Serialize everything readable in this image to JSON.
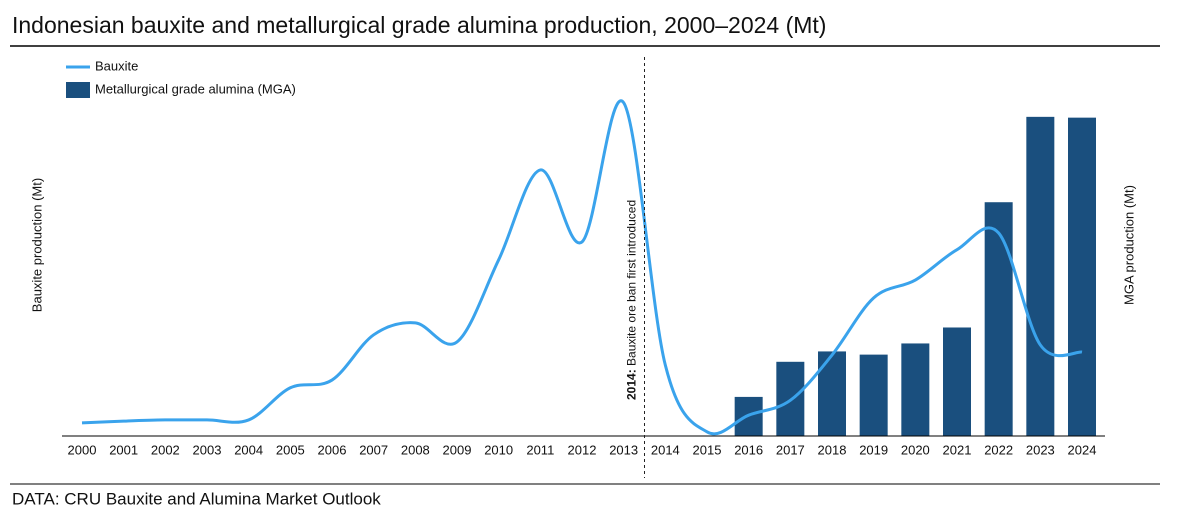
{
  "chart_data": {
    "type": "bar_line",
    "title": "Indonesian bauxite and metallurgical grade alumina production, 2000–2024 (Mt)",
    "source": "DATA: CRU Bauxite and Alumina Market Outlook",
    "ylabel": "Bauxite production (Mt)",
    "y2label": "MGA production (Mt)",
    "annotation": {
      "label": "2014:",
      "text": " Bauxite ore ban first introduced",
      "x": 2013.5
    },
    "categories": [
      "2000",
      "2001",
      "2002",
      "2003",
      "2004",
      "2005",
      "2006",
      "2007",
      "2008",
      "2009",
      "2010",
      "2011",
      "2012",
      "2013",
      "2014",
      "2015",
      "2016",
      "2017",
      "2018",
      "2019",
      "2020",
      "2021",
      "2022",
      "2023",
      "2024"
    ],
    "series": [
      {
        "name": "Bauxite",
        "type": "line",
        "color": "#3aa3ec",
        "values": [
          2.2,
          2.5,
          2.7,
          2.7,
          2.7,
          8.1,
          9.4,
          17,
          19,
          15.8,
          29.6,
          44.7,
          32.6,
          56,
          11.9,
          0.7,
          3.5,
          6,
          13.6,
          23.2,
          26.2,
          31.3,
          34.1,
          15.3,
          14.1
        ]
      },
      {
        "name": "Metallurgical grade alumina (MGA)",
        "type": "bar",
        "axis": "y2",
        "color": "#1a4f7e",
        "values": [
          null,
          null,
          null,
          null,
          null,
          null,
          null,
          null,
          null,
          null,
          null,
          null,
          null,
          null,
          null,
          null,
          0.49,
          0.93,
          1.06,
          1.02,
          1.16,
          1.36,
          2.93,
          4.0,
          3.99
        ]
      }
    ],
    "ylim": [
      0,
      63
    ],
    "y2lim": [
      0,
      4.7
    ],
    "legend": "top-left"
  }
}
